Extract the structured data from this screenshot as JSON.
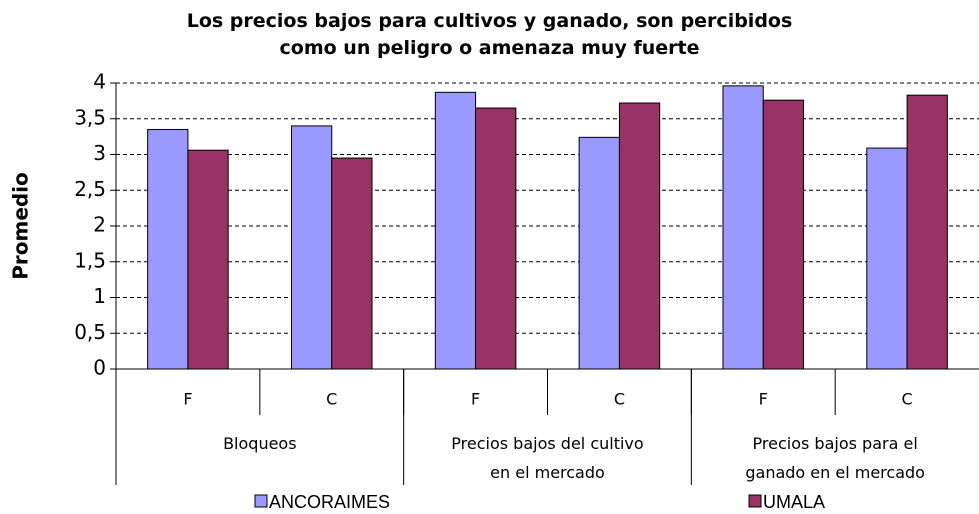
{
  "chart_data": {
    "type": "bar",
    "title": "Los precios bajos para cultivos y ganado, son percibidos\ncomo un peligro o amenaza muy fuerte",
    "y_label": "Promedio",
    "categories": [
      "F",
      "C",
      "F",
      "C",
      "F",
      "C"
    ],
    "groups": [
      {
        "label": "Bloqueos",
        "span": 2
      },
      {
        "label": "Precios bajos del cultivo\nen el mercado",
        "span": 2
      },
      {
        "label": "Precios bajos para el\nganado en el mercado",
        "span": 2
      }
    ],
    "series": [
      {
        "name": "ANCORAIMES",
        "color": "#9999ff",
        "values": [
          3.35,
          3.4,
          3.87,
          3.24,
          3.96,
          3.09
        ]
      },
      {
        "name": "UMALA",
        "color": "#993366",
        "values": [
          3.06,
          2.95,
          3.65,
          3.72,
          3.76,
          3.83
        ]
      }
    ],
    "ylim": [
      0,
      4
    ],
    "yticks": [
      0,
      {
        "value": 0.5,
        "label": "0,5"
      },
      1,
      {
        "value": 1.5,
        "label": "1,5"
      },
      2,
      {
        "value": 2.5,
        "label": "2,5"
      },
      3,
      {
        "value": 3.5,
        "label": "3,5"
      },
      4
    ],
    "grid": true,
    "legend": "bottom"
  }
}
